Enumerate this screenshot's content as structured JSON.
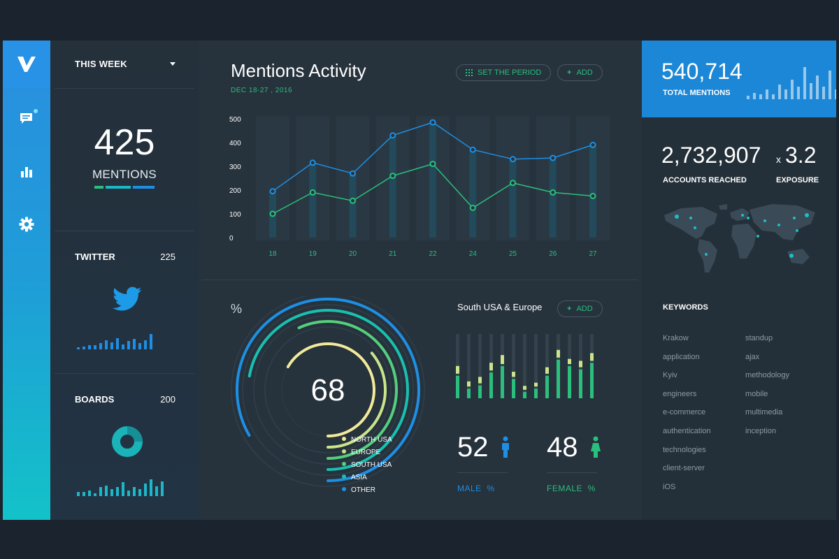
{
  "nav": {
    "logo": "V"
  },
  "period": {
    "label": "THIS WEEK"
  },
  "mentions": {
    "count": "425",
    "label": "MENTIONS"
  },
  "twitter": {
    "label": "TWITTER",
    "count": "225",
    "bars": [
      2,
      3,
      4,
      4,
      6,
      9,
      7,
      11,
      5,
      8,
      10,
      6,
      9,
      15
    ]
  },
  "boards": {
    "label": "BOARDS",
    "count": "200",
    "bars": [
      4,
      4,
      6,
      3,
      9,
      11,
      7,
      9,
      14,
      6,
      9,
      7,
      13,
      17,
      10,
      15
    ]
  },
  "activity": {
    "title": "Mentions Activity",
    "date": "DEC 18-27 , 2016",
    "set_period": "SET THE PERIOD",
    "add": "ADD"
  },
  "chart_data": [
    {
      "type": "line",
      "title": "Mentions Activity",
      "categories": [
        "18",
        "19",
        "20",
        "21",
        "22",
        "24",
        "25",
        "26",
        "27"
      ],
      "yticks": [
        "500",
        "400",
        "300",
        "200",
        "100",
        "0"
      ],
      "ylim": [
        0,
        500
      ],
      "series": [
        {
          "name": "blue",
          "color": "#1e8fe3",
          "values": [
            195,
            315,
            270,
            430,
            485,
            370,
            330,
            335,
            390
          ]
        },
        {
          "name": "green",
          "color": "#2bbf7e",
          "values": [
            100,
            190,
            155,
            260,
            310,
            125,
            230,
            190,
            175
          ]
        }
      ]
    },
    {
      "type": "bar",
      "title": "South USA & Europe",
      "series": [
        {
          "name": "green",
          "values": [
            35,
            15,
            20,
            40,
            50,
            30,
            10,
            15,
            35,
            60,
            50,
            45,
            55
          ]
        },
        {
          "name": "yellow",
          "values": [
            12,
            8,
            10,
            12,
            14,
            8,
            6,
            6,
            10,
            12,
            8,
            10,
            12
          ]
        },
        {
          "name": "track",
          "values": [
            100,
            100,
            100,
            100,
            100,
            100,
            100,
            100,
            100,
            100,
            100,
            100,
            100
          ]
        }
      ]
    }
  ],
  "radial": {
    "percent_symbol": "%",
    "value": "68",
    "legend": [
      {
        "label": "NORTH USA",
        "color": "#f2ea9a"
      },
      {
        "label": "EUROPE",
        "color": "#c9e48a"
      },
      {
        "label": "SOUTH USA",
        "color": "#55cf7d"
      },
      {
        "label": "ASIA",
        "color": "#19c0b0"
      },
      {
        "label": "OTHER",
        "color": "#1e8fe3"
      }
    ]
  },
  "region": {
    "title": "South USA & Europe",
    "add": "ADD"
  },
  "gender": {
    "male_value": "52",
    "male_label": "MALE  %",
    "female_value": "48",
    "female_label": "FEMALE  %"
  },
  "totals": {
    "total_mentions": "540,714",
    "total_label": "TOTAL MENTIONS",
    "reached": "2,732,907",
    "reached_label": "ACCOUNTS REACHED",
    "exposure_prefix": "x",
    "exposure": "3.2",
    "exposure_label": "EXPOSURE",
    "mini_bars": [
      2,
      4,
      3,
      6,
      3,
      9,
      6,
      12,
      8,
      20,
      10,
      15,
      8,
      18,
      6,
      12,
      4
    ]
  },
  "keywords": {
    "title": "KEYWORDS",
    "col1": [
      "Krakow",
      "application",
      "Kyiv",
      "engineers",
      "e-commerce",
      "authentication",
      "technologies",
      "client-server",
      "iOS"
    ],
    "col2": [
      "standup",
      "ajax",
      "methodology",
      "mobile",
      "multimedia",
      "inception"
    ]
  },
  "colors": {
    "blue": "#1e8fe3",
    "green": "#2bbf7e",
    "bg": "#26323c"
  }
}
